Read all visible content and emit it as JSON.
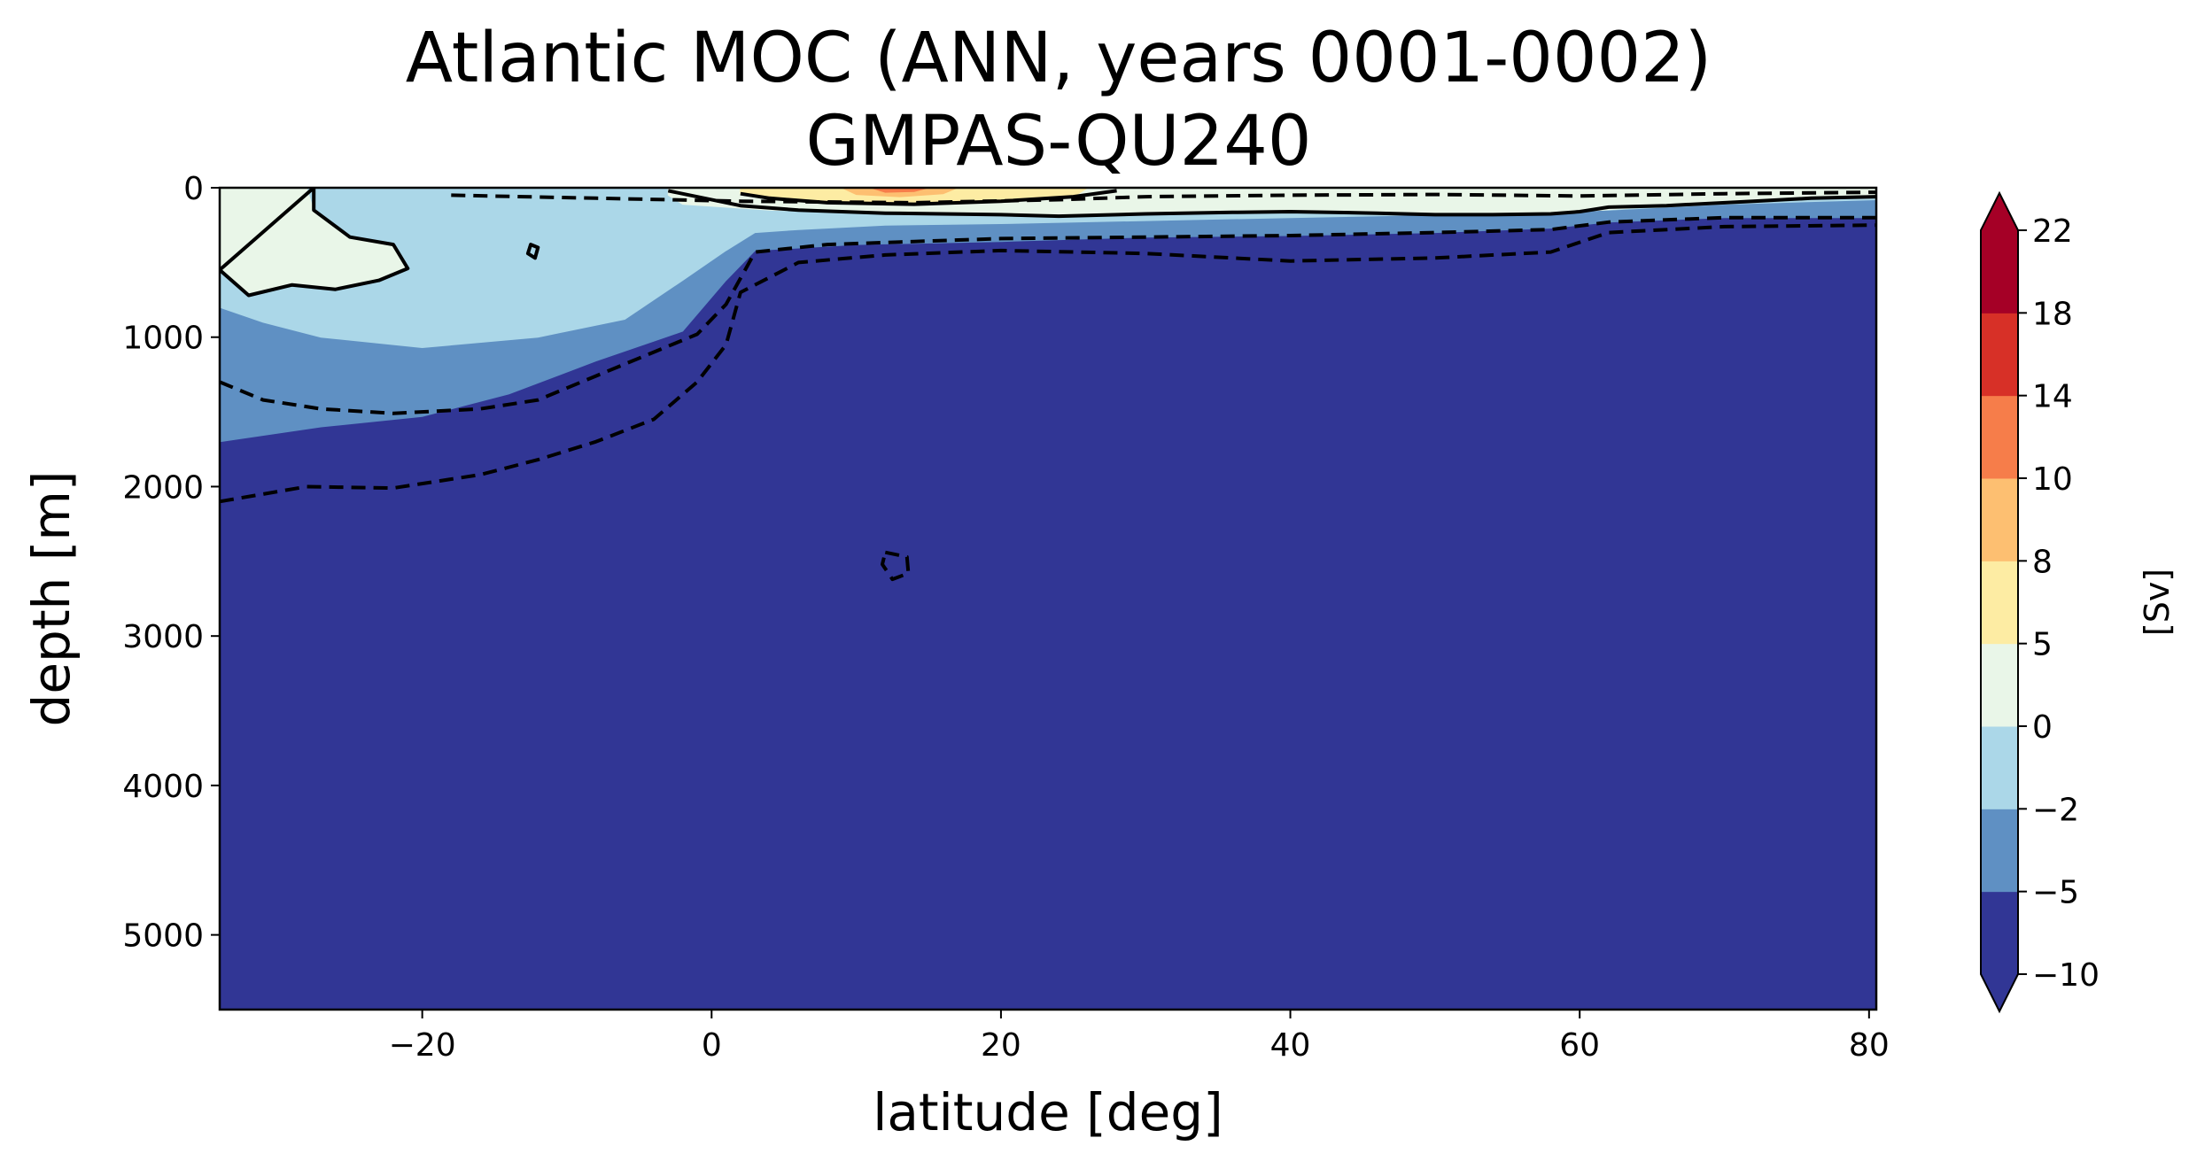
{
  "chart_data": {
    "type": "contour",
    "title": "Atlantic MOC (ANN, years 0001-0002)",
    "subtitle": "GMPAS-QU240",
    "xlabel": "latitude [deg]",
    "ylabel": "depth [m]",
    "xlim": [
      -34,
      80.5
    ],
    "ylim": [
      5500,
      0
    ],
    "x_ticks": [
      -20,
      0,
      20,
      40,
      60,
      80
    ],
    "x_tick_labels": [
      "−20",
      "0",
      "20",
      "40",
      "60",
      "80"
    ],
    "y_ticks": [
      0,
      1000,
      2000,
      3000,
      4000,
      5000
    ],
    "y_tick_labels": [
      "0",
      "1000",
      "2000",
      "3000",
      "4000",
      "5000"
    ],
    "colorbar": {
      "label": "[Sv]",
      "levels": [
        -10,
        -5,
        -2,
        0,
        5,
        8,
        10,
        14,
        18,
        22
      ],
      "tick_labels": [
        "−10",
        "−5",
        "−2",
        "0",
        "5",
        "8",
        "10",
        "14",
        "18",
        "22"
      ],
      "colors": [
        "#313695",
        "#5f90c3",
        "#abd7e8",
        "#e9f6e8",
        "#fdeca3",
        "#fdbf71",
        "#f67d4a",
        "#d73027",
        "#a50026"
      ],
      "extend_under_color": "#313695",
      "extend_over_color": "#a50026"
    },
    "background_color": "#313695",
    "fill_regions": [
      {
        "level": "-5 to -2",
        "color": "#5f90c3",
        "boundary": [
          [
            -34,
            0
          ],
          [
            80.5,
            0
          ],
          [
            80.5,
            200
          ],
          [
            70,
            200
          ],
          [
            62,
            230
          ],
          [
            58,
            270
          ],
          [
            50,
            300
          ],
          [
            40,
            320
          ],
          [
            30,
            330
          ],
          [
            20,
            360
          ],
          [
            10,
            380
          ],
          [
            3,
            420
          ],
          [
            1,
            620
          ],
          [
            -2,
            960
          ],
          [
            -8,
            1160
          ],
          [
            -14,
            1380
          ],
          [
            -20,
            1530
          ],
          [
            -27,
            1600
          ],
          [
            -34,
            1700
          ]
        ]
      },
      {
        "level": "-2 to 0",
        "color": "#abd7e8",
        "boundary": [
          [
            -34,
            0
          ],
          [
            80.5,
            0
          ],
          [
            80.5,
            80
          ],
          [
            70,
            110
          ],
          [
            62,
            150
          ],
          [
            50,
            180
          ],
          [
            40,
            200
          ],
          [
            30,
            220
          ],
          [
            20,
            240
          ],
          [
            12,
            250
          ],
          [
            6,
            280
          ],
          [
            3,
            300
          ],
          [
            1,
            420
          ],
          [
            -2,
            620
          ],
          [
            -6,
            880
          ],
          [
            -12,
            1000
          ],
          [
            -20,
            1070
          ],
          [
            -27,
            1000
          ],
          [
            -31,
            900
          ],
          [
            -34,
            800
          ]
        ]
      },
      {
        "level": "0 to 5",
        "color": "#e9f6e8",
        "boundary": [
          [
            -34,
            0
          ],
          [
            -28,
            0
          ],
          [
            -27.5,
            150
          ],
          [
            -25,
            330
          ],
          [
            -22,
            380
          ],
          [
            -21,
            540
          ],
          [
            -23,
            620
          ],
          [
            -26,
            680
          ],
          [
            -29,
            650
          ],
          [
            -32,
            720
          ],
          [
            -34,
            550
          ]
        ]
      },
      {
        "level": "0 to 5",
        "color": "#e9f6e8",
        "boundary": [
          [
            -3,
            0
          ],
          [
            80.5,
            0
          ],
          [
            80.5,
            60
          ],
          [
            72,
            90
          ],
          [
            66,
            120
          ],
          [
            60,
            160
          ],
          [
            54,
            180
          ],
          [
            46,
            170
          ],
          [
            40,
            160
          ],
          [
            30,
            175
          ],
          [
            20,
            180
          ],
          [
            12,
            170
          ],
          [
            4,
            150
          ],
          [
            -2,
            110
          ],
          [
            -3,
            50
          ]
        ]
      },
      {
        "level": "5 to 8",
        "color": "#fdeca3",
        "boundary": [
          [
            2,
            0
          ],
          [
            26,
            0
          ],
          [
            25,
            60
          ],
          [
            20,
            90
          ],
          [
            14,
            110
          ],
          [
            8,
            100
          ],
          [
            4,
            70
          ],
          [
            2,
            40
          ]
        ]
      },
      {
        "level": "8 to 10",
        "color": "#fdbf71",
        "boundary": [
          [
            9,
            0
          ],
          [
            17,
            0
          ],
          [
            16,
            40
          ],
          [
            13,
            60
          ],
          [
            10,
            45
          ]
        ]
      },
      {
        "level": "10 to 14",
        "color": "#f67d4a",
        "boundary": [
          [
            11,
            0
          ],
          [
            15,
            0
          ],
          [
            14,
            25
          ],
          [
            12,
            30
          ]
        ]
      }
    ],
    "contour_lines": [
      {
        "style": "solid",
        "value": 0,
        "closed": true,
        "points": [
          [
            -27.5,
            0
          ],
          [
            -27.5,
            150
          ],
          [
            -25,
            330
          ],
          [
            -22,
            380
          ],
          [
            -21,
            540
          ],
          [
            -23,
            620
          ],
          [
            -26,
            680
          ],
          [
            -29,
            650
          ],
          [
            -32,
            720
          ],
          [
            -34,
            550
          ]
        ]
      },
      {
        "style": "solid",
        "value": 0,
        "closed": true,
        "points": [
          [
            -12.5,
            380
          ],
          [
            -12,
            400
          ],
          [
            -12.2,
            470
          ],
          [
            -12.7,
            440
          ]
        ]
      },
      {
        "style": "solid",
        "value": 0,
        "points": [
          [
            -3,
            20
          ],
          [
            2,
            120
          ],
          [
            6,
            150
          ],
          [
            12,
            170
          ],
          [
            20,
            180
          ],
          [
            24,
            190
          ],
          [
            30,
            175
          ],
          [
            36,
            165
          ],
          [
            40,
            160
          ],
          [
            46,
            170
          ],
          [
            50,
            180
          ],
          [
            54,
            180
          ],
          [
            58,
            175
          ],
          [
            60,
            160
          ],
          [
            62,
            130
          ],
          [
            66,
            120
          ],
          [
            72,
            90
          ],
          [
            76,
            70
          ],
          [
            80.5,
            60
          ]
        ]
      },
      {
        "style": "solid",
        "value": 5,
        "points": [
          [
            2,
            40
          ],
          [
            4,
            70
          ],
          [
            8,
            100
          ],
          [
            14,
            110
          ],
          [
            20,
            90
          ],
          [
            25,
            60
          ],
          [
            28,
            20
          ]
        ]
      },
      {
        "style": "dashed",
        "value": -2,
        "points": [
          [
            -34,
            1300
          ],
          [
            -31,
            1420
          ],
          [
            -27,
            1480
          ],
          [
            -22,
            1510
          ],
          [
            -16,
            1480
          ],
          [
            -12,
            1420
          ],
          [
            -8,
            1260
          ],
          [
            -4,
            1100
          ],
          [
            -1,
            980
          ],
          [
            1,
            780
          ],
          [
            3,
            430
          ],
          [
            8,
            380
          ],
          [
            14,
            360
          ],
          [
            20,
            340
          ],
          [
            30,
            330
          ],
          [
            40,
            320
          ],
          [
            50,
            300
          ],
          [
            58,
            280
          ],
          [
            62,
            230
          ],
          [
            70,
            200
          ],
          [
            80.5,
            200
          ]
        ]
      },
      {
        "style": "dashed",
        "value": -5,
        "points": [
          [
            -34,
            2100
          ],
          [
            -31,
            2050
          ],
          [
            -28,
            2000
          ],
          [
            -22,
            2010
          ],
          [
            -16,
            1920
          ],
          [
            -12,
            1820
          ],
          [
            -8,
            1700
          ],
          [
            -4,
            1550
          ],
          [
            -1,
            1300
          ],
          [
            1,
            1050
          ],
          [
            2,
            700
          ],
          [
            6,
            500
          ],
          [
            12,
            450
          ],
          [
            20,
            420
          ],
          [
            30,
            440
          ],
          [
            40,
            490
          ],
          [
            50,
            470
          ],
          [
            58,
            430
          ],
          [
            62,
            300
          ],
          [
            70,
            260
          ],
          [
            80.5,
            250
          ]
        ]
      },
      {
        "style": "dashed",
        "value": -2,
        "points": [
          [
            -18,
            50
          ],
          [
            -8,
            70
          ],
          [
            2,
            90
          ],
          [
            14,
            100
          ],
          [
            24,
            80
          ],
          [
            30,
            60
          ],
          [
            40,
            50
          ],
          [
            50,
            45
          ],
          [
            60,
            55
          ],
          [
            70,
            40
          ],
          [
            80.5,
            30
          ]
        ]
      },
      {
        "style": "dashed",
        "value": -5,
        "closed": true,
        "points": [
          [
            12,
            2440
          ],
          [
            13.5,
            2470
          ],
          [
            13.6,
            2580
          ],
          [
            12.5,
            2620
          ],
          [
            11.8,
            2520
          ]
        ]
      }
    ]
  }
}
